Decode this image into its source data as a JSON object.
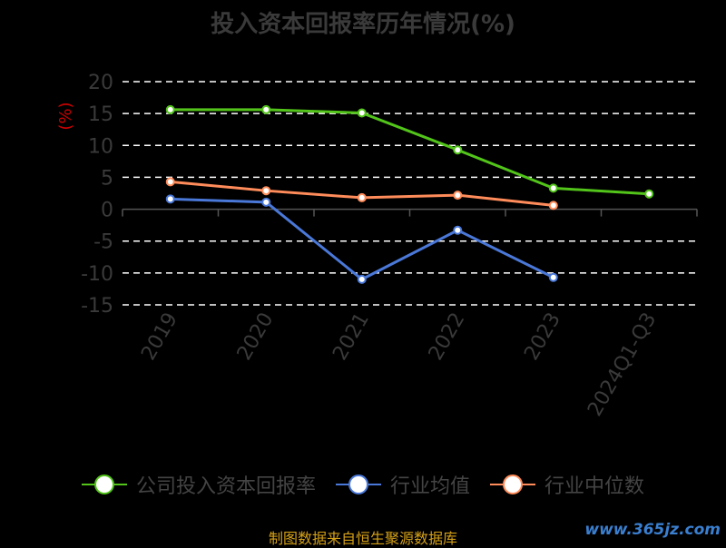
{
  "chart_data": {
    "type": "line",
    "title": "投入资本回报率历年情况(%)",
    "ylabel": "(%)",
    "categories": [
      "2019",
      "2020",
      "2021",
      "2022",
      "2023",
      "2024Q1-Q3"
    ],
    "ylim": [
      -15,
      20
    ],
    "yticks": [
      20,
      15,
      10,
      5,
      0,
      -5,
      -10,
      -15
    ],
    "grid": "horizontal dashed",
    "legend_position": "bottom",
    "series": [
      {
        "name": "公司投入资本回报率",
        "color": "#52c41a",
        "values": [
          15.6,
          15.6,
          15.1,
          9.3,
          3.3,
          2.4
        ]
      },
      {
        "name": "行业均值",
        "color": "#4a78d8",
        "values": [
          1.6,
          1.1,
          -11.0,
          -3.3,
          -10.7,
          null
        ]
      },
      {
        "name": "行业中位数",
        "color": "#ff8c5a",
        "values": [
          4.3,
          2.9,
          1.8,
          2.2,
          0.6,
          null
        ]
      }
    ]
  },
  "footer": "制图数据来自恒生聚源数据库",
  "watermark": "www.365jz.com"
}
